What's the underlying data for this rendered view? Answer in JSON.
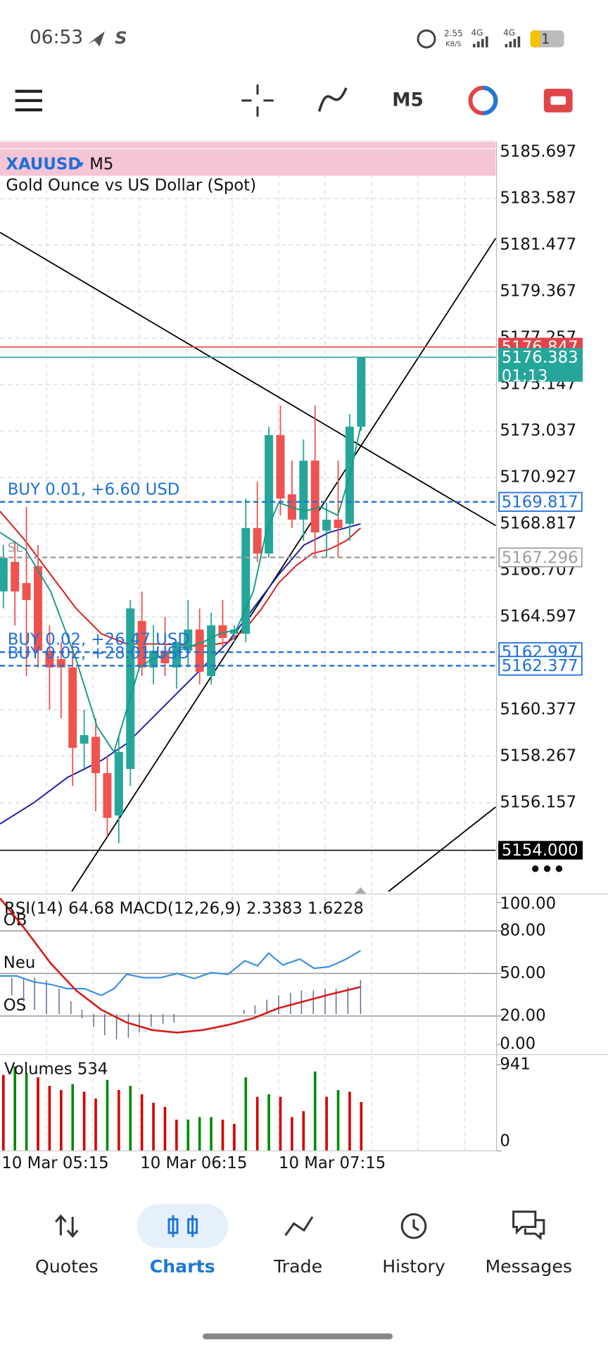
{
  "status_bar": {
    "time": "06:53",
    "speed": "2.55",
    "speed_unit": "KB/S",
    "network_1": "4G",
    "network_2": "4G",
    "battery": "1"
  },
  "toolbar": {
    "timeframe": "M5"
  },
  "chart": {
    "symbol": "XAUUSD",
    "timeframe": "M5",
    "description": "Gold Ounce vs US Dollar (Spot)",
    "up_color": "#26a69a",
    "down_color": "#ef5350",
    "price_ticks": [
      5185.697,
      5183.587,
      5181.477,
      5179.367,
      5177.257,
      5175.147,
      5173.037,
      5170.927,
      5168.817,
      5166.707,
      5164.597,
      5160.377,
      5158.267,
      5156.157
    ],
    "candles": [
      {
        "open": 5165.75,
        "high": 5167.86,
        "low": 5164.98,
        "close": 5167.28
      },
      {
        "open": 5167.09,
        "high": 5168.05,
        "low": 5164.21,
        "close": 5165.75
      },
      {
        "open": 5166.13,
        "high": 5169.58,
        "low": 5161.91,
        "close": 5165.36
      },
      {
        "open": 5166.9,
        "high": 5167.86,
        "low": 5162.3,
        "close": 5163.06
      },
      {
        "open": 5163.06,
        "high": 5164.21,
        "low": 5160.38,
        "close": 5162.3
      },
      {
        "open": 5162.68,
        "high": 5163.45,
        "low": 5159.99,
        "close": 5162.3
      },
      {
        "open": 5162.3,
        "high": 5163.45,
        "low": 5156.92,
        "close": 5158.65
      },
      {
        "open": 5158.84,
        "high": 5160.38,
        "low": 5157.69,
        "close": 5159.23
      },
      {
        "open": 5159.15,
        "high": 5159.99,
        "low": 5155.77,
        "close": 5157.5
      },
      {
        "open": 5157.5,
        "high": 5158.27,
        "low": 5154.62,
        "close": 5155.47
      },
      {
        "open": 5155.58,
        "high": 5159.23,
        "low": 5154.32,
        "close": 5158.46
      },
      {
        "open": 5157.69,
        "high": 5165.36,
        "low": 5156.92,
        "close": 5164.98
      },
      {
        "open": 5164.41,
        "high": 5165.75,
        "low": 5161.91,
        "close": 5162.3
      },
      {
        "open": 5162.3,
        "high": 5164.21,
        "low": 5161.53,
        "close": 5163.06
      },
      {
        "open": 5163.06,
        "high": 5164.6,
        "low": 5161.91,
        "close": 5162.49
      },
      {
        "open": 5162.3,
        "high": 5163.45,
        "low": 5161.34,
        "close": 5163.45
      },
      {
        "open": 5163.06,
        "high": 5165.36,
        "low": 5162.3,
        "close": 5164.02
      },
      {
        "open": 5164.02,
        "high": 5164.98,
        "low": 5161.53,
        "close": 5162.1
      },
      {
        "open": 5161.91,
        "high": 5164.79,
        "low": 5161.53,
        "close": 5164.21
      },
      {
        "open": 5164.21,
        "high": 5165.36,
        "low": 5163.25,
        "close": 5163.64
      },
      {
        "open": 5163.83,
        "high": 5164.21,
        "low": 5163.45,
        "close": 5164.02
      },
      {
        "open": 5163.83,
        "high": 5169.97,
        "low": 5163.45,
        "close": 5168.63
      },
      {
        "open": 5168.63,
        "high": 5170.74,
        "low": 5167.09,
        "close": 5167.47
      },
      {
        "open": 5167.47,
        "high": 5173.23,
        "low": 5167.28,
        "close": 5172.85
      },
      {
        "open": 5172.85,
        "high": 5174.19,
        "low": 5169.2,
        "close": 5169.97
      },
      {
        "open": 5170.16,
        "high": 5171.69,
        "low": 5168.63,
        "close": 5169.01
      },
      {
        "open": 5169.01,
        "high": 5172.65,
        "low": 5168.05,
        "close": 5171.69
      },
      {
        "open": 5171.69,
        "high": 5174.19,
        "low": 5167.28,
        "close": 5168.43
      },
      {
        "open": 5168.51,
        "high": 5169.78,
        "low": 5167.28,
        "close": 5169.01
      },
      {
        "open": 5169.01,
        "high": 5171.69,
        "low": 5167.28,
        "close": 5168.63
      },
      {
        "open": 5168.82,
        "high": 5173.8,
        "low": 5168.05,
        "close": 5173.23
      },
      {
        "open": 5173.23,
        "high": 5176.38,
        "low": 5173.04,
        "close": 5176.38
      }
    ],
    "price_lines": [
      {
        "price": 5176.847,
        "color": "#e0454a",
        "style": "solid",
        "badge": "fill"
      },
      {
        "price": 5176.383,
        "color": "#26a69a",
        "style": "solid",
        "badge": "fill",
        "countdown": "01:13"
      },
      {
        "price": 5169.817,
        "color": "#1e6fd9",
        "style": "dashed",
        "badge": "outline",
        "label": "BUY 0.01,  +6.60 USD"
      },
      {
        "price": 5167.296,
        "color": "#9e9e9e",
        "style": "dashed",
        "badge": "outline",
        "label": "SL"
      },
      {
        "price": 5162.997,
        "color": "#1e6fd9",
        "style": "dashed",
        "badge": "outline",
        "label": "BUY 0.02,  +26.47 USD"
      },
      {
        "price": 5162.377,
        "color": "#1e6fd9",
        "style": "dashed",
        "badge": "outline",
        "label": "BUY 0.02,  +28.01 USD"
      },
      {
        "price": {
          "value": 5154,
          "label": "5154.000"
        },
        "color": "#000000",
        "style": "solid",
        "badge": "fill"
      }
    ],
    "time_labels": [
      "10 Mar 05:15",
      "10 Mar 06:15",
      "10 Mar 07:15"
    ]
  },
  "indicators": {
    "header": "RSI(14) 64.68 MACD(12,26,9) 2.3383 1.6228",
    "ticks": [
      {
        "value": 100,
        "label": "100.00"
      },
      {
        "value": 80,
        "label": "80.00"
      },
      {
        "value": 50,
        "label": "50.00"
      },
      {
        "value": 20,
        "label": "20.00"
      },
      {
        "value": 0,
        "label": "0.00"
      }
    ],
    "levels": [
      {
        "label": "OB",
        "value": 80
      },
      {
        "label": "Neu",
        "value": 50
      },
      {
        "label": "OS",
        "value": 20
      }
    ]
  },
  "volumes": {
    "header": "Volumes 534",
    "ticks": [
      941,
      0
    ],
    "values": [
      830,
      923,
      849,
      803,
      710,
      664,
      729,
      646,
      572,
      775,
      664,
      710,
      618,
      526,
      480,
      341,
      341,
      369,
      369,
      341,
      295,
      803,
      590,
      618,
      590,
      369,
      434,
      867,
      590,
      664,
      646,
      534
    ],
    "colors": [
      "#d40000",
      "#008a00",
      "#008a00",
      "#d40000",
      "#d40000",
      "#d40000",
      "#008a00",
      "#d40000",
      "#d40000",
      "#008a00",
      "#d40000",
      "#008a00",
      "#d40000",
      "#d40000",
      "#d40000",
      "#d40000",
      "#008a00",
      "#008a00",
      "#008a00",
      "#d40000",
      "#d40000",
      "#008a00",
      "#d40000",
      "#008a00",
      "#d40000",
      "#d40000",
      "#d40000",
      "#008a00",
      "#d40000",
      "#008a00",
      "#d40000",
      "#d40000"
    ]
  },
  "nav": {
    "items": [
      "Quotes",
      "Charts",
      "Trade",
      "History",
      "Messages"
    ]
  }
}
